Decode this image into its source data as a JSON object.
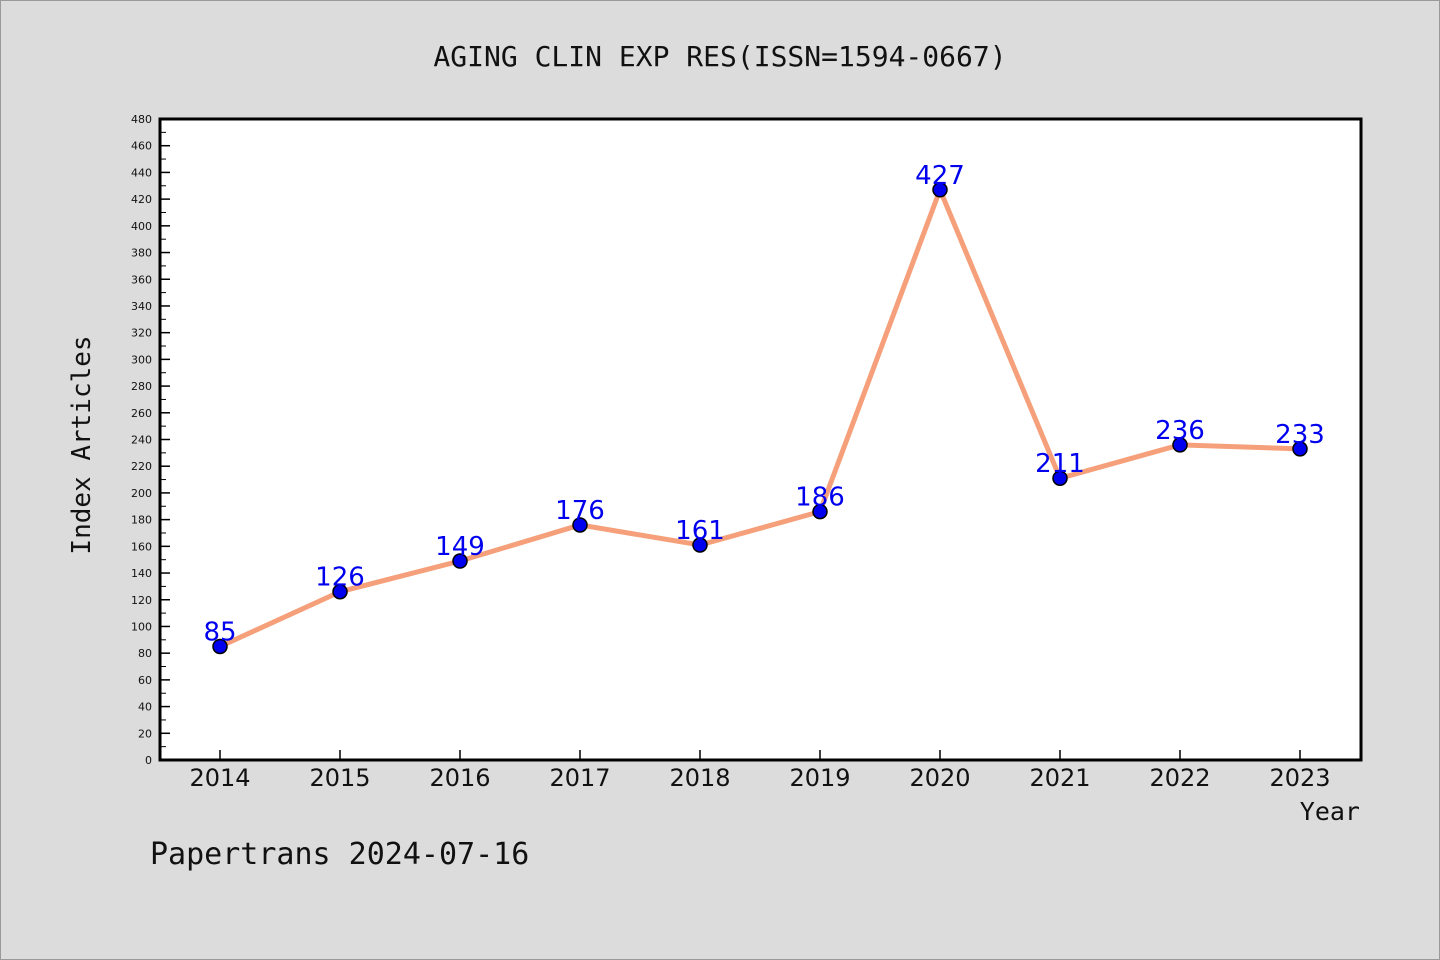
{
  "chart_data": {
    "type": "line",
    "title": "AGING CLIN EXP RES(ISSN=1594-0667)",
    "xlabel": "Year",
    "ylabel": "Index Articles",
    "categories": [
      "2014",
      "2015",
      "2016",
      "2017",
      "2018",
      "2019",
      "2020",
      "2021",
      "2022",
      "2023"
    ],
    "values": [
      85,
      126,
      149,
      176,
      161,
      186,
      427,
      211,
      236,
      233
    ],
    "ylim": [
      0,
      480
    ],
    "yticks": [
      0,
      20,
      40,
      60,
      80,
      100,
      120,
      140,
      160,
      180,
      200,
      220,
      240,
      260,
      280,
      300,
      320,
      340,
      360,
      380,
      400,
      420,
      440,
      460,
      480
    ],
    "grid": false,
    "line_color": "#f5a07a",
    "marker_color": "#0000ee",
    "label_color": "#0000ee"
  },
  "footer": {
    "credit": "Papertrans 2024-07-16"
  }
}
